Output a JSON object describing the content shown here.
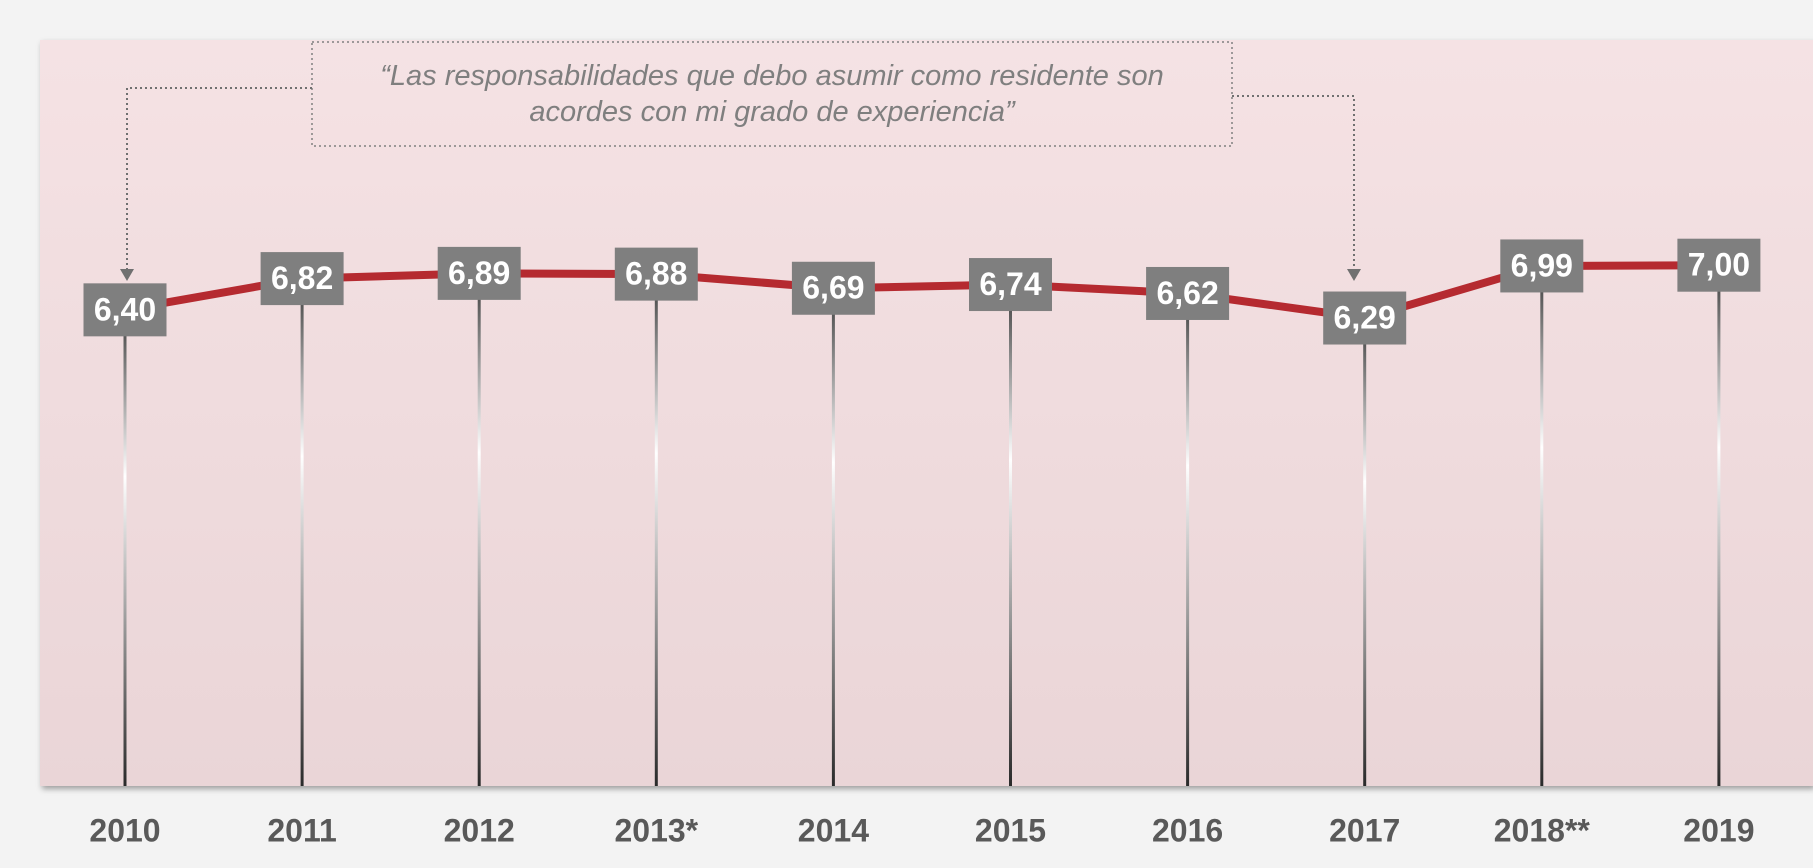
{
  "chart_data": {
    "type": "line",
    "annotation": "“Las responsabilidades que debo asumir como residente son acordes con mi grado de experiencia”",
    "categories": [
      "2010",
      "2011",
      "2012",
      "2013*",
      "2014",
      "2015",
      "2016",
      "2017",
      "2018**",
      "2019"
    ],
    "values": [
      6.4,
      6.82,
      6.89,
      6.88,
      6.69,
      6.74,
      6.62,
      6.29,
      6.99,
      7.0
    ],
    "value_labels": [
      "6,40",
      "6,82",
      "6,89",
      "6,88",
      "6,69",
      "6,74",
      "6,62",
      "6,29",
      "6,99",
      "7,00"
    ],
    "color": "#b52a30",
    "ylim": [
      0,
      10
    ]
  }
}
